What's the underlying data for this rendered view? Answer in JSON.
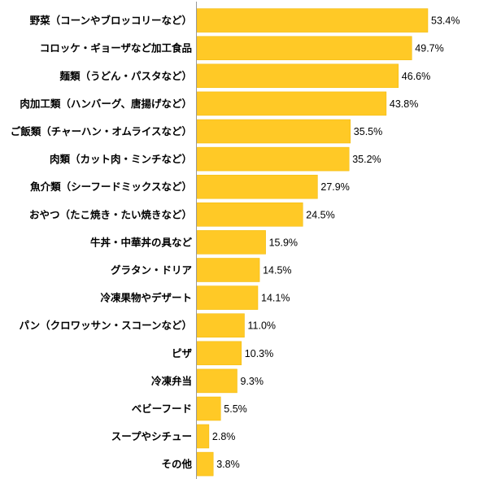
{
  "chart_data": {
    "type": "bar",
    "orientation": "horizontal",
    "unit": "%",
    "xlim": [
      0,
      60
    ],
    "grid": false,
    "legend": "none",
    "colors": {
      "bar": "#FFC926",
      "bar_edge": "#F2B800",
      "axis": "#999999",
      "text": "#000000"
    },
    "categories": [
      "野菜（コーンやブロッコリーなど）",
      "コロッケ・ギョーザなど加工食品",
      "麺類（うどん・パスタなど）",
      "肉加工類（ハンバーグ、唐揚げなど）",
      "ご飯類（チャーハン・オムライスなど）",
      "肉類（カット肉・ミンチなど）",
      "魚介類（シーフードミックスなど）",
      "おやつ（たこ焼き・たい焼きなど）",
      "牛丼・中華丼の具など",
      "グラタン・ドリア",
      "冷凍果物やデザート",
      "パン（クロワッサン・スコーンなど）",
      "ピザ",
      "冷凍弁当",
      "ベビーフード",
      "スープやシチュー",
      "その他"
    ],
    "values": [
      53.4,
      49.7,
      46.6,
      43.8,
      35.5,
      35.2,
      27.9,
      24.5,
      15.9,
      14.5,
      14.1,
      11.0,
      10.3,
      9.3,
      5.5,
      2.8,
      3.8
    ],
    "data_labels": [
      "53.4%",
      "49.7%",
      "46.6%",
      "43.8%",
      "35.5%",
      "35.2%",
      "27.9%",
      "24.5%",
      "15.9%",
      "14.5%",
      "14.1%",
      "11.0%",
      "10.3%",
      "9.3%",
      "5.5%",
      "2.8%",
      "3.8%"
    ]
  }
}
